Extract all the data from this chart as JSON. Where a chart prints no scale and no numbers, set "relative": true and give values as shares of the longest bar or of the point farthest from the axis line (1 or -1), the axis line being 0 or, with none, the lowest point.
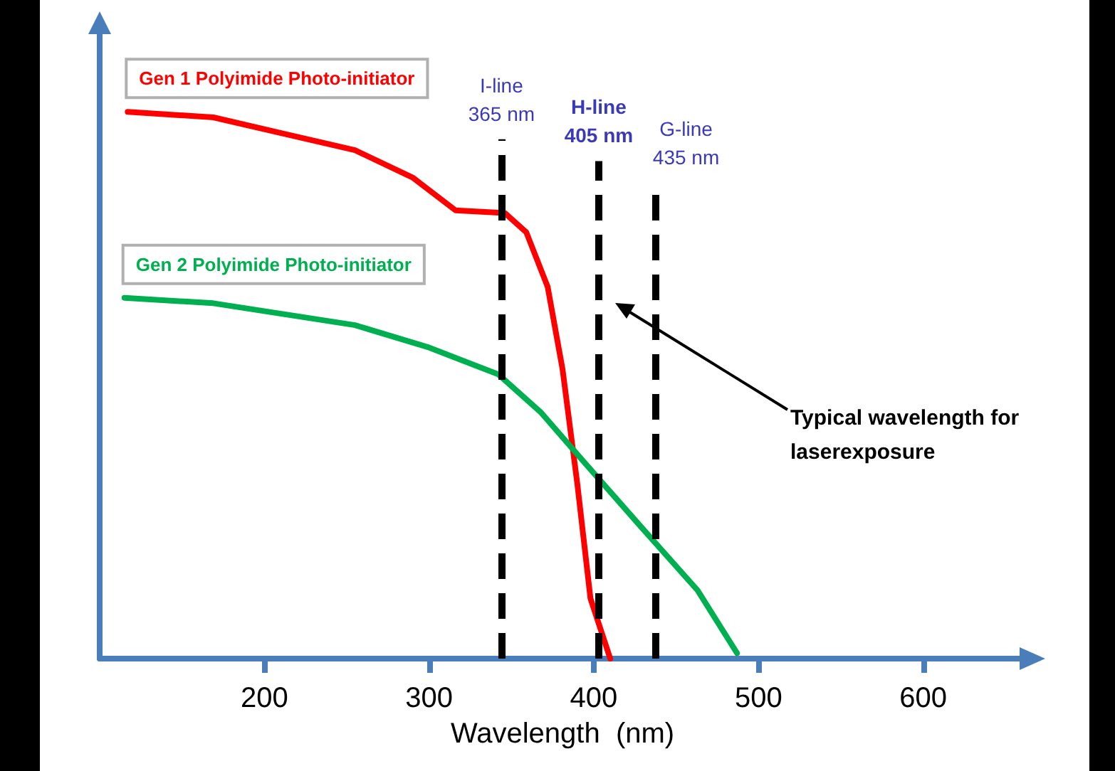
{
  "chart_data": {
    "type": "line",
    "xlabel": "Wavelength  (nm)",
    "relative": true,
    "xlim": [
      100,
      662
    ],
    "xticks": [
      200,
      300,
      400,
      500,
      600
    ],
    "tick_labels": "x",
    "grid": false,
    "legend": false,
    "marker": "none",
    "line_style": "solid",
    "series": [
      {
        "name": "Gen 1 Polyimide Photo-initiator",
        "color": "#ff0000",
        "x": [
          117,
          169,
          212,
          255,
          290,
          316,
          346,
          359,
          372,
          381,
          390,
          398,
          410
        ],
        "values": [
          1,
          0.99,
          0.96,
          0.93,
          0.88,
          0.82,
          0.815,
          0.78,
          0.68,
          0.53,
          0.32,
          0.11,
          0
        ]
      },
      {
        "name": "Gen 2 Polyimide Photo-initiator",
        "color": "#00b050",
        "x": [
          115,
          169,
          255,
          299,
          342,
          368,
          394,
          429,
          463,
          487
        ],
        "values": [
          0.66,
          0.65,
          0.61,
          0.57,
          0.52,
          0.45,
          0.36,
          0.24,
          0.125,
          0.01
        ]
      }
    ],
    "ref_lines": [
      {
        "axis": "x",
        "value": 344,
        "label": "I-line\n365 nm",
        "color": "#000000",
        "line_style": "dashed"
      },
      {
        "axis": "x",
        "value": 403,
        "label": "H-line\n405 nm",
        "color": "#000000",
        "line_style": "dashed"
      },
      {
        "axis": "x",
        "value": 437,
        "label": "G-line\n435 nm",
        "color": "#000000",
        "line_style": "dashed"
      }
    ],
    "annotations": [
      "Typical wavelength for\nlaserexposure"
    ]
  }
}
